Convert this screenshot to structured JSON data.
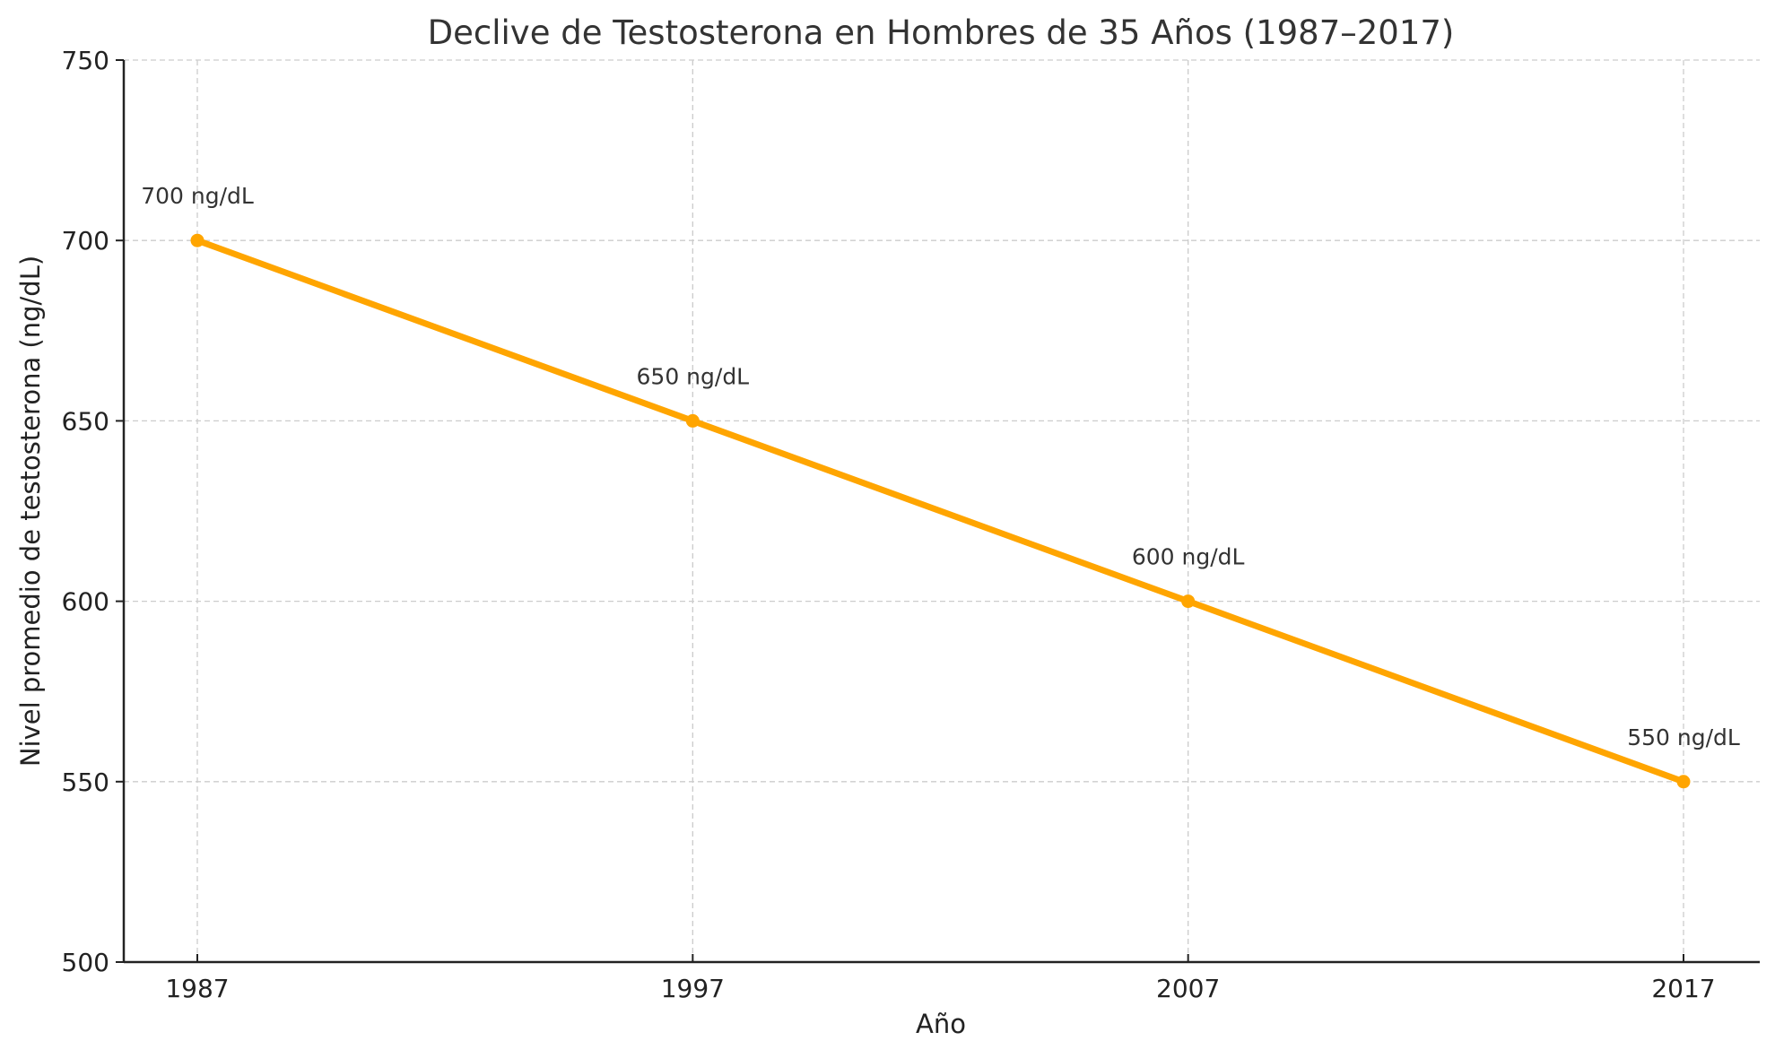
{
  "chart_data": {
    "type": "line",
    "title": "Declive de Testosterona en Hombres de 35 Años (1987–2017)",
    "xlabel": "Año",
    "ylabel": "Nivel promedio de testosterona (ng/dL)",
    "x": [
      1987,
      1997,
      2007,
      2017
    ],
    "x_tick_labels": [
      "1987",
      "1997",
      "2007",
      "2017"
    ],
    "series": [
      {
        "name": "Testosterona",
        "values": [
          700,
          650,
          600,
          550
        ],
        "color": "#FFA500"
      }
    ],
    "annotations": [
      "700 ng/dL",
      "650 ng/dL",
      "600 ng/dL",
      "550 ng/dL"
    ],
    "ylim": [
      500,
      750
    ],
    "y_ticks": [
      500,
      550,
      600,
      650,
      700,
      750
    ],
    "y_tick_labels": [
      "500",
      "550",
      "600",
      "650",
      "700",
      "750"
    ],
    "grid": true,
    "grid_style": "dashed"
  }
}
